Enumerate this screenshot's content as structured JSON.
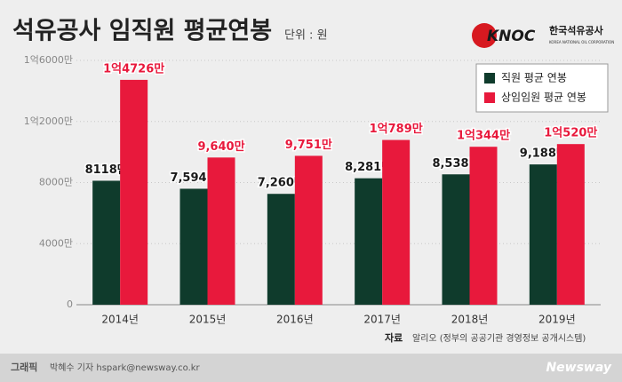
{
  "chart_data": {
    "type": "bar",
    "title": "석유공사 임직원 평균연봉",
    "subtitle": "단위 : 원",
    "logo": {
      "mark": "KNOC",
      "name": "한국석유공사",
      "english": "KOREA NATIONAL OIL CORPORATION"
    },
    "categories": [
      "2014년",
      "2015년",
      "2016년",
      "2017년",
      "2018년",
      "2019년"
    ],
    "series": [
      {
        "name": "직원 평균 연봉",
        "color": "#0f3b2c",
        "values": [
          8118,
          7594,
          7260,
          8281,
          8538,
          9188
        ],
        "value_labels": [
          "8118만",
          "7,594만",
          "7,260만",
          "8,281만",
          "8,538만",
          "9,188만"
        ]
      },
      {
        "name": "상임임원 평균 연봉",
        "color": "#e8193c",
        "values": [
          14726,
          9640,
          9751,
          10789,
          10344,
          10520
        ],
        "value_labels": [
          "1억4726만",
          "9,640만",
          "9,751만",
          "1억789만",
          "1억344만",
          "1억520만"
        ]
      }
    ],
    "ylim": [
      0,
      16000
    ],
    "yticks": [
      0,
      {
        "value": 4000,
        "label": "4000만"
      },
      {
        "value": 8000,
        "label": "8000만"
      },
      {
        "value": 12000,
        "label": "1억2000만"
      },
      {
        "value": 16000,
        "label": "1억6000만"
      }
    ],
    "grid": true,
    "legend": "top-right",
    "source_label": "자료",
    "source": "알리오 (정부의 공공기관 경영정보 공개시스템)",
    "credit_label": "그래픽",
    "credit": "박혜수 기자 hspark@newsway.co.kr",
    "brand": "Newsway"
  }
}
